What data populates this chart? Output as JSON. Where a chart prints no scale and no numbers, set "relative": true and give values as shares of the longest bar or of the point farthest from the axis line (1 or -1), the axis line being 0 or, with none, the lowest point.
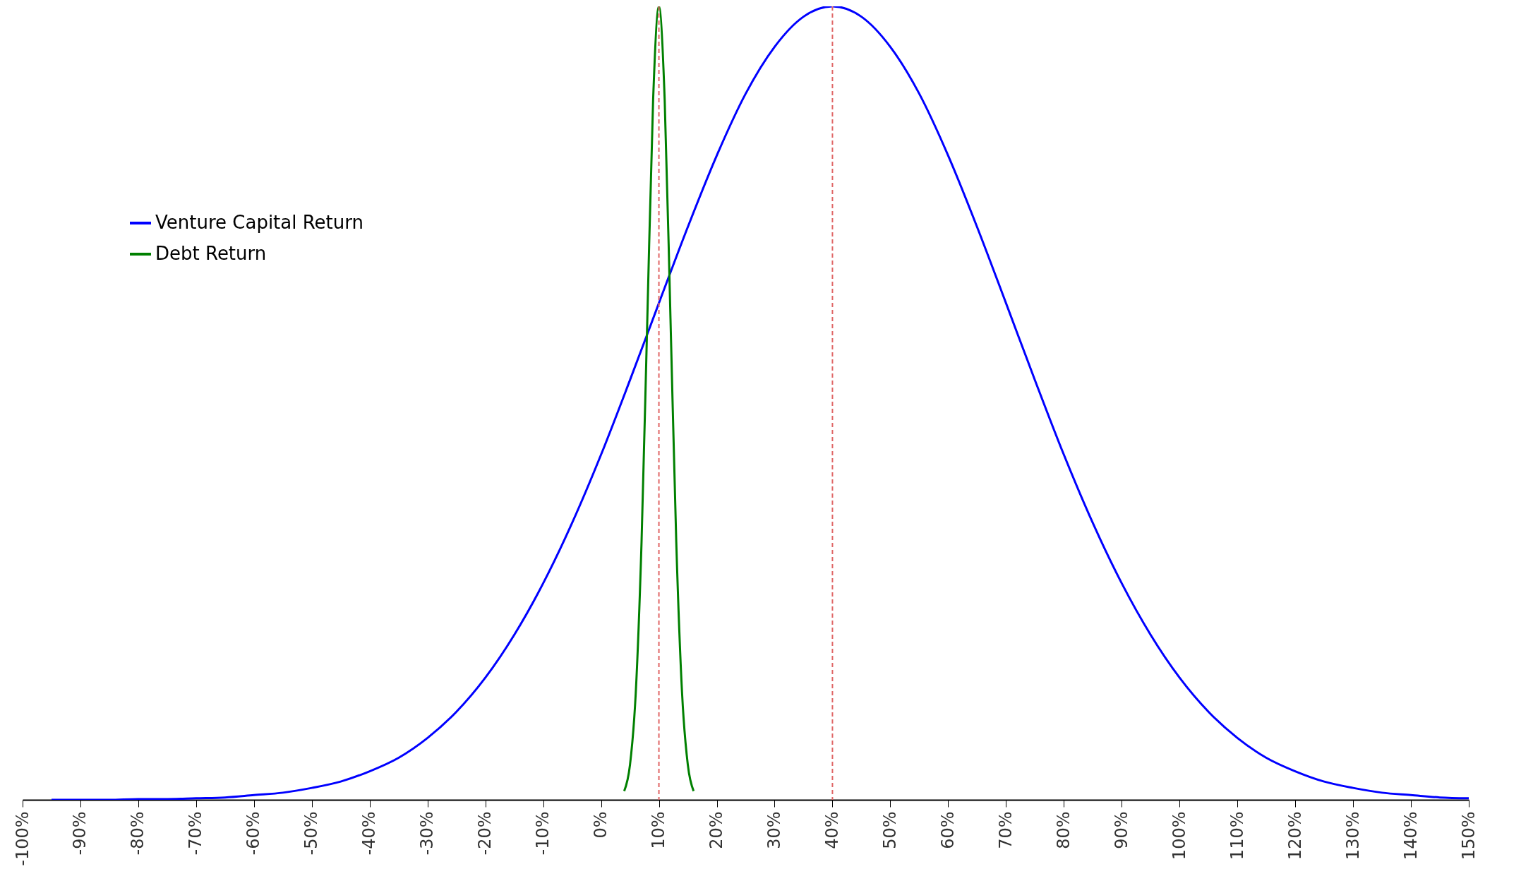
{
  "chart_data": {
    "type": "line",
    "relative": true,
    "legend": "top left",
    "xlim": [
      -100,
      150
    ],
    "xticks": [
      {
        "value": -100,
        "label": "-100%"
      },
      {
        "value": -90,
        "label": "-90%"
      },
      {
        "value": -80,
        "label": "-80%"
      },
      {
        "value": -70,
        "label": "-70%"
      },
      {
        "value": -60,
        "label": "-60%"
      },
      {
        "value": -50,
        "label": "-50%"
      },
      {
        "value": -40,
        "label": "-40%"
      },
      {
        "value": -30,
        "label": "-30%"
      },
      {
        "value": -20,
        "label": "-20%"
      },
      {
        "value": -10,
        "label": "-10%"
      },
      {
        "value": 0,
        "label": "0%"
      },
      {
        "value": 10,
        "label": "10%"
      },
      {
        "value": 20,
        "label": "20%"
      },
      {
        "value": 30,
        "label": "30%"
      },
      {
        "value": 40,
        "label": "40%"
      },
      {
        "value": 50,
        "label": "50%"
      },
      {
        "value": 60,
        "label": "60%"
      },
      {
        "value": 70,
        "label": "70%"
      },
      {
        "value": 80,
        "label": "80%"
      },
      {
        "value": 90,
        "label": "90%"
      },
      {
        "value": 100,
        "label": "100%"
      },
      {
        "value": 110,
        "label": "110%"
      },
      {
        "value": 120,
        "label": "120%"
      },
      {
        "value": 130,
        "label": "130%"
      },
      {
        "value": 140,
        "label": "140%"
      },
      {
        "value": 150,
        "label": "150%"
      }
    ],
    "series": [
      {
        "name": "Venture Capital Return",
        "color": "#0000ff",
        "x": [
          -95,
          -90,
          -85,
          -80,
          -75,
          -70,
          -65,
          -60,
          -55,
          -50,
          -45,
          -40,
          -35,
          -30,
          -25,
          -20,
          -15,
          -10,
          -5,
          0,
          5,
          10,
          15,
          20,
          25,
          30,
          35,
          40,
          45,
          50,
          55,
          60,
          65,
          70,
          75,
          80,
          85,
          90,
          95,
          100,
          105,
          110,
          115,
          120,
          125,
          130,
          135,
          140,
          145,
          150
        ],
        "values": [
          0,
          0,
          0,
          0.001,
          0.001,
          0.002,
          0.003,
          0.006,
          0.009,
          0.015,
          0.023,
          0.036,
          0.053,
          0.078,
          0.111,
          0.154,
          0.208,
          0.273,
          0.349,
          0.435,
          0.529,
          0.626,
          0.722,
          0.812,
          0.89,
          0.949,
          0.987,
          1,
          0.987,
          0.949,
          0.89,
          0.812,
          0.722,
          0.626,
          0.529,
          0.435,
          0.349,
          0.273,
          0.208,
          0.154,
          0.111,
          0.078,
          0.053,
          0.036,
          0.023,
          0.015,
          0.009,
          0.006,
          0.003,
          0.002
        ]
      },
      {
        "name": "Debt Return",
        "color": "#008000",
        "x": [
          4,
          5,
          6,
          7,
          8,
          9,
          10,
          11,
          12,
          13,
          14,
          15,
          16
        ],
        "values": [
          0.011,
          0.044,
          0.135,
          0.325,
          0.607,
          0.882,
          1,
          0.882,
          0.607,
          0.325,
          0.135,
          0.044,
          0.011
        ]
      }
    ],
    "ref_lines": [
      {
        "axis": "x",
        "value": 10,
        "color": "#e06666",
        "line_style": "dashed"
      },
      {
        "axis": "x",
        "value": 40,
        "color": "#e06666",
        "line_style": "dashed"
      }
    ]
  }
}
